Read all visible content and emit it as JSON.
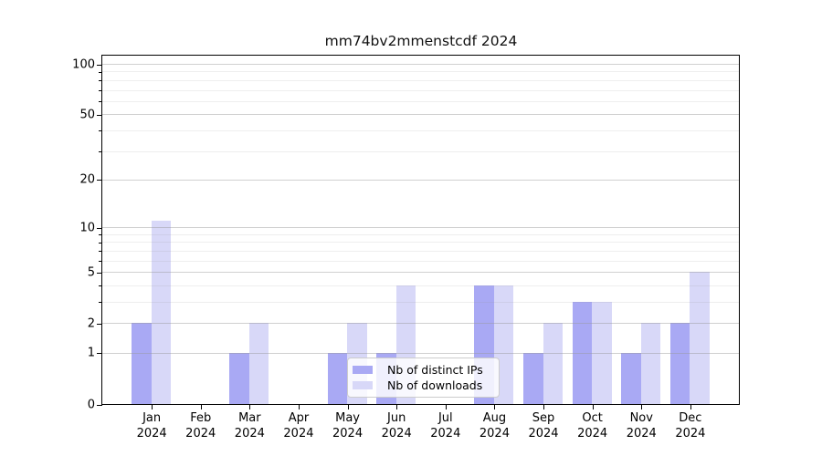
{
  "chart_data": {
    "type": "bar",
    "title": "mm74bv2mmenstcdf 2024",
    "categories": [
      "Jan",
      "Feb",
      "Mar",
      "Apr",
      "May",
      "Jun",
      "Jul",
      "Aug",
      "Sep",
      "Oct",
      "Nov",
      "Dec"
    ],
    "year_label": "2024",
    "series": [
      {
        "name": "Nb of distinct IPs",
        "color": "#a9a9f4",
        "values": [
          2,
          0,
          1,
          0,
          1,
          1,
          0,
          4,
          1,
          3,
          1,
          2
        ]
      },
      {
        "name": "Nb of downloads",
        "color": "#d8d8f8",
        "values": [
          11,
          0,
          2,
          0,
          2,
          4,
          0,
          4,
          2,
          3,
          2,
          5
        ]
      }
    ],
    "xlabel": "",
    "ylabel": "",
    "y_ticks": [
      0,
      1,
      2,
      5,
      10,
      20,
      50,
      100
    ],
    "y_minor_ticks": [
      3,
      4,
      6,
      7,
      8,
      9,
      30,
      40,
      60,
      70,
      80,
      90
    ],
    "ylim": [
      0,
      112
    ],
    "y_scale": "log1p",
    "grid": true,
    "grid_above_bars": true,
    "legend_position": "lower center",
    "colors": {
      "axis": "#000000",
      "grid_major": "#c8c8c8",
      "grid_minor": "#ebebeb",
      "background": "#ffffff"
    }
  }
}
